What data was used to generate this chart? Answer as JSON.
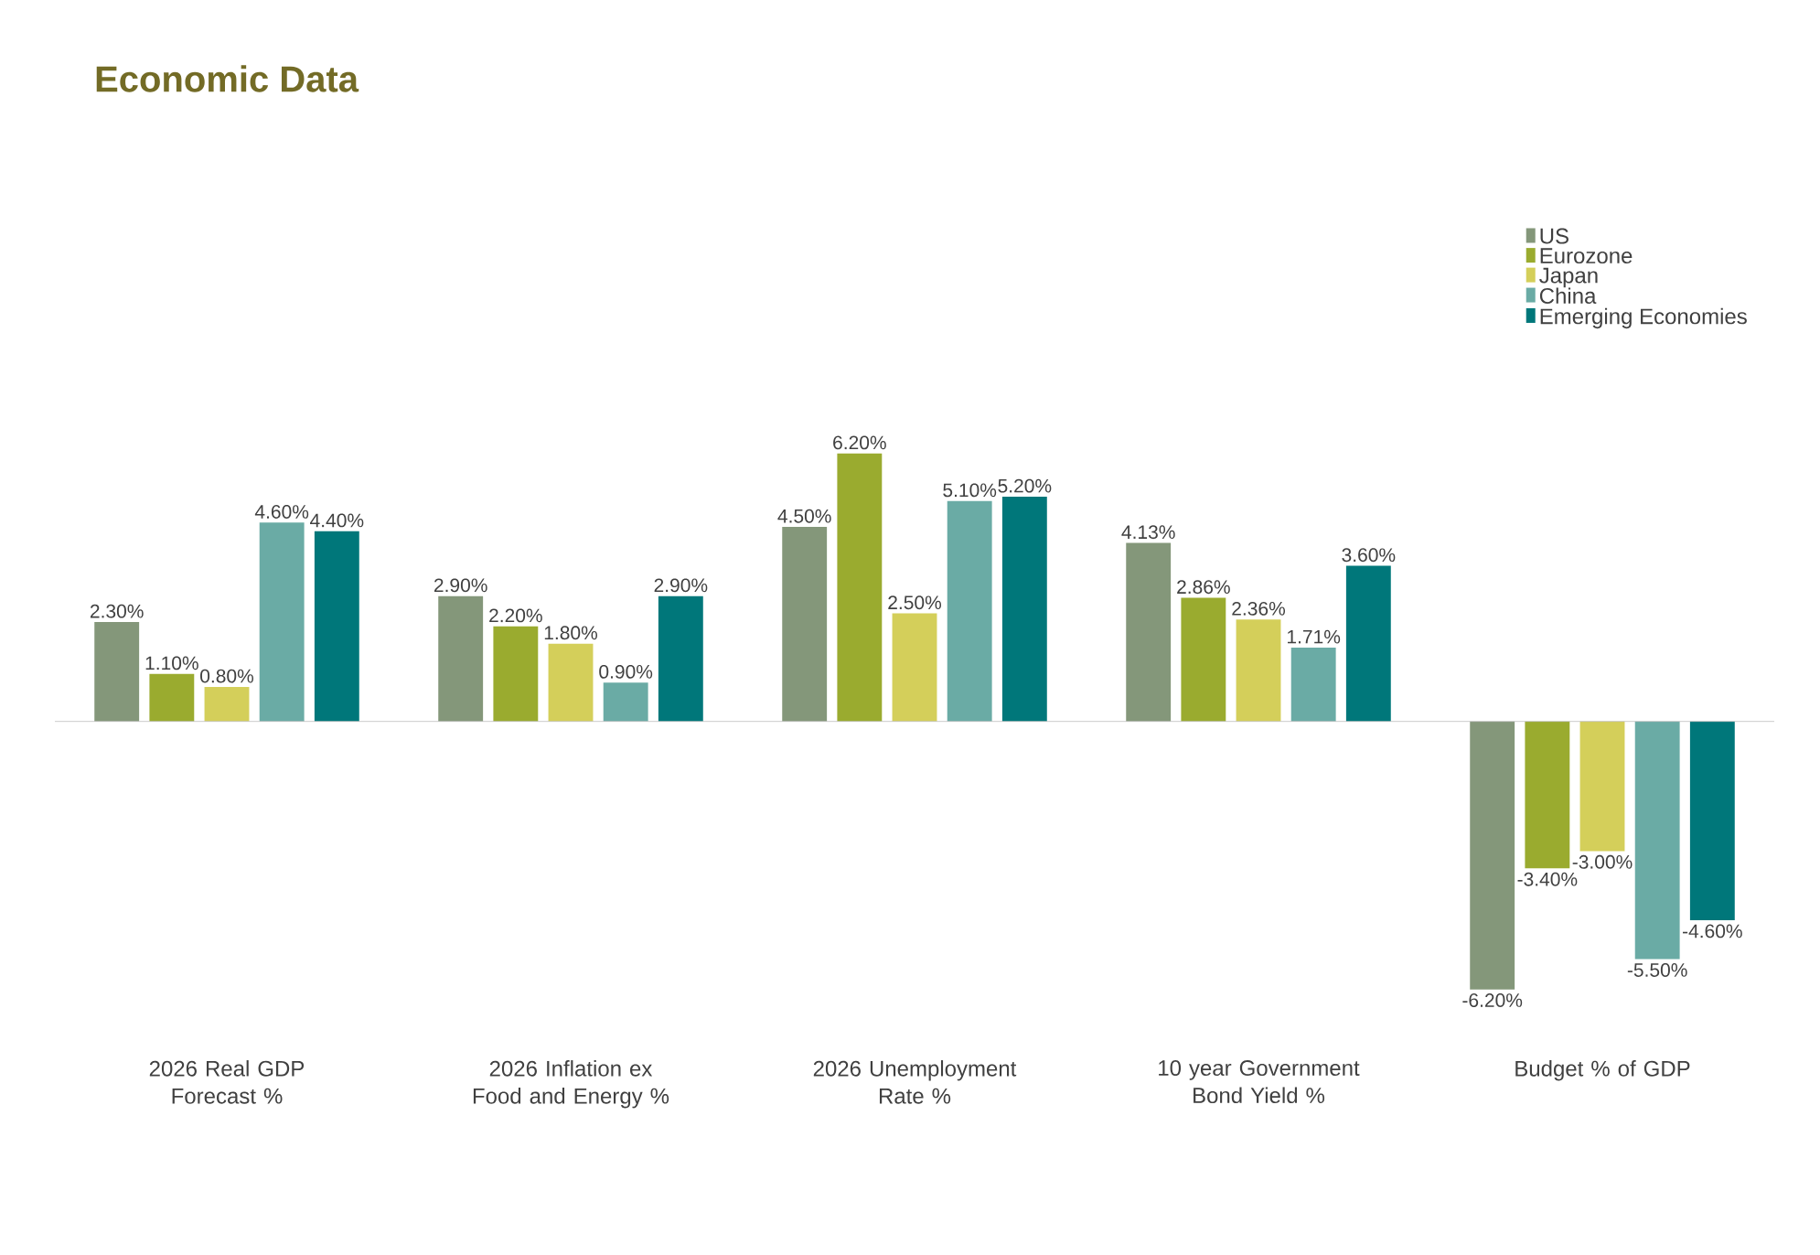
{
  "chart_data": {
    "type": "bar",
    "title": "Economic Data",
    "categories": [
      "2026 Real GDP Forecast %",
      "2026 Inflation ex Food and Energy %",
      "2026 Unemployment Rate %",
      "10 year Government Bond Yield %",
      "Budget % of GDP"
    ],
    "series": [
      {
        "name": "US",
        "color": "#84977a",
        "values": [
          2.3,
          2.9,
          4.5,
          4.13,
          -6.2
        ],
        "value_labels": [
          "2.30%",
          "2.90%",
          "4.50%",
          "4.13%",
          "-6.20%"
        ]
      },
      {
        "name": "Eurozone",
        "color": "#9aab2f",
        "values": [
          1.1,
          2.2,
          6.2,
          2.86,
          -3.4
        ],
        "value_labels": [
          "1.10%",
          "2.20%",
          "6.20%",
          "2.86%",
          "-3.40%"
        ]
      },
      {
        "name": "Japan",
        "color": "#d4cf5a",
        "values": [
          0.8,
          1.8,
          2.5,
          2.36,
          -3.0
        ],
        "value_labels": [
          "0.80%",
          "1.80%",
          "2.50%",
          "2.36%",
          "-3.00%"
        ]
      },
      {
        "name": "China",
        "color": "#6aaba5",
        "values": [
          4.6,
          0.9,
          5.1,
          1.71,
          -5.5
        ],
        "value_labels": [
          "4.60%",
          "0.90%",
          "5.10%",
          "1.71%",
          "-5.50%"
        ]
      },
      {
        "name": "Emerging Economies",
        "color": "#00777a",
        "values": [
          4.4,
          2.9,
          5.2,
          3.6,
          -4.6
        ],
        "value_labels": [
          "4.40%",
          "2.90%",
          "5.20%",
          "3.60%",
          "-4.60%"
        ]
      }
    ],
    "legend": "top right"
  }
}
